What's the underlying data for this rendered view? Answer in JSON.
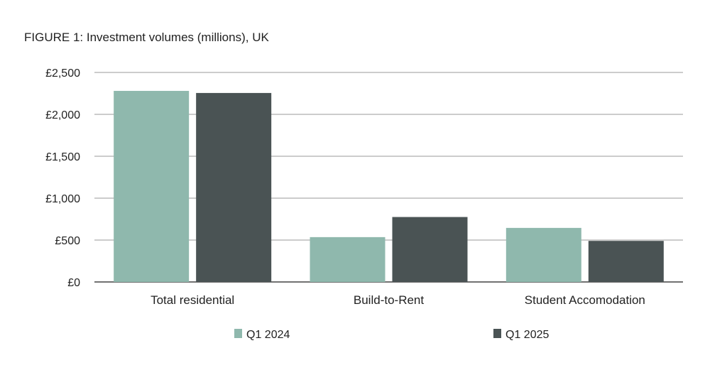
{
  "chart_data": {
    "type": "bar",
    "title": "FIGURE 1: Investment volumes (millions), UK",
    "xlabel": "",
    "ylabel": "",
    "categories": [
      "Total residential",
      "Build-to-Rent",
      "Student Accomodation"
    ],
    "series": [
      {
        "name": "Q1 2024",
        "values": [
          2280,
          535,
          645
        ],
        "color": "#8fb8ad"
      },
      {
        "name": "Q1 2025",
        "values": [
          2255,
          775,
          490
        ],
        "color": "#4a5354"
      }
    ],
    "ylim": [
      0,
      2500
    ],
    "yticks": [
      0,
      500,
      1000,
      1500,
      2000,
      2500
    ],
    "ytick_labels": [
      "£0",
      "£500",
      "£1,000",
      "£1,500",
      "£2,000",
      "£2,500"
    ],
    "grid": true,
    "legend_position": "bottom"
  }
}
